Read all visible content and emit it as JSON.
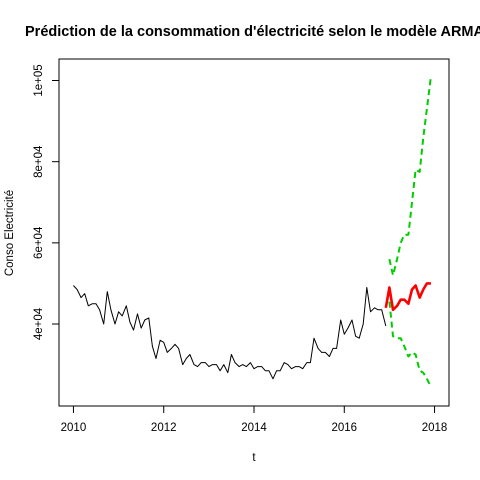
{
  "chart_data": {
    "type": "line",
    "title": "Prédiction de la consommation d'électricité selon le modèle ARMA",
    "xlabel": "t",
    "ylabel": "Conso Electricité",
    "xlim": [
      2010,
      2018
    ],
    "ylim": [
      22000,
      104000
    ],
    "x_ticks": [
      2010,
      2012,
      2014,
      2016,
      2018
    ],
    "x_tick_labels": [
      "2010",
      "2012",
      "2014",
      "2016",
      "2018"
    ],
    "y_ticks": [
      40000,
      60000,
      80000,
      100000
    ],
    "y_tick_labels": [
      "4e+04",
      "6e+04",
      "8e+04",
      "1e+05"
    ],
    "colors": {
      "observed": "#000000",
      "forecast": "#ff0000",
      "bounds": "#00cd00"
    },
    "series": [
      {
        "role": "observed",
        "x": [
          2010.0,
          2010.08,
          2010.17,
          2010.25,
          2010.33,
          2010.42,
          2010.5,
          2010.58,
          2010.67,
          2010.75,
          2010.83,
          2010.92,
          2011.0,
          2011.08,
          2011.17,
          2011.25,
          2011.33,
          2011.42,
          2011.5,
          2011.58,
          2011.67,
          2011.75,
          2011.83,
          2011.92,
          2012.0,
          2012.08,
          2012.17,
          2012.25,
          2012.33,
          2012.42,
          2012.5,
          2012.58,
          2012.67,
          2012.75,
          2012.83,
          2012.92,
          2013.0,
          2013.08,
          2013.17,
          2013.25,
          2013.33,
          2013.42,
          2013.5,
          2013.58,
          2013.67,
          2013.75,
          2013.83,
          2013.92,
          2014.0,
          2014.08,
          2014.17,
          2014.25,
          2014.33,
          2014.42,
          2014.5,
          2014.58,
          2014.67,
          2014.75,
          2014.83,
          2014.92,
          2015.0,
          2015.08,
          2015.17,
          2015.25,
          2015.33,
          2015.42,
          2015.5,
          2015.58,
          2015.67,
          2015.75,
          2015.83,
          2015.92,
          2016.0,
          2016.08,
          2016.17,
          2016.25,
          2016.33,
          2016.42,
          2016.5,
          2016.58,
          2016.67,
          2016.75,
          2016.83,
          2016.92
        ],
        "y": [
          49500,
          48500,
          46500,
          47500,
          44500,
          45000,
          45000,
          43500,
          40000,
          48000,
          43500,
          40000,
          43000,
          42000,
          44500,
          40500,
          38500,
          42500,
          39000,
          41000,
          41500,
          34500,
          31500,
          36000,
          35500,
          33000,
          34000,
          35000,
          34000,
          30000,
          31500,
          32500,
          30000,
          29500,
          30500,
          30500,
          29500,
          30000,
          30000,
          28500,
          30000,
          28000,
          32500,
          30500,
          29500,
          30000,
          29500,
          30500,
          29000,
          29500,
          29500,
          28500,
          28500,
          26500,
          28500,
          28500,
          30500,
          30000,
          29000,
          29500,
          29500,
          29000,
          30500,
          30500,
          36500,
          34000,
          33000,
          33000,
          32000,
          34000,
          34000,
          41000,
          37500,
          39000,
          41000,
          37000,
          36500,
          40000,
          49000,
          43000,
          44000,
          43500,
          43500,
          39500
        ]
      },
      {
        "role": "forecast",
        "x": [
          2016.92,
          2017.0,
          2017.08,
          2017.17,
          2017.25,
          2017.33,
          2017.42,
          2017.5,
          2017.58,
          2017.67,
          2017.75,
          2017.83,
          2017.92
        ],
        "y": [
          44000,
          49000,
          43500,
          44500,
          46000,
          46000,
          45000,
          48500,
          49500,
          46500,
          48500,
          50000,
          50000
        ]
      },
      {
        "role": "upper",
        "x": [
          2017.0,
          2017.08,
          2017.17,
          2017.25,
          2017.33,
          2017.42,
          2017.5,
          2017.58,
          2017.67,
          2017.75,
          2017.83,
          2017.92
        ],
        "y": [
          56000,
          52000,
          56000,
          60000,
          62000,
          62000,
          70000,
          78000,
          77500,
          86000,
          93000,
          101000
        ]
      },
      {
        "role": "lower",
        "x": [
          2017.0,
          2017.08,
          2017.17,
          2017.25,
          2017.33,
          2017.42,
          2017.5,
          2017.58,
          2017.67,
          2017.75,
          2017.83,
          2017.92
        ],
        "y": [
          45500,
          37000,
          36500,
          36500,
          34500,
          32000,
          33000,
          32500,
          28500,
          28000,
          26500,
          24500
        ]
      }
    ]
  }
}
